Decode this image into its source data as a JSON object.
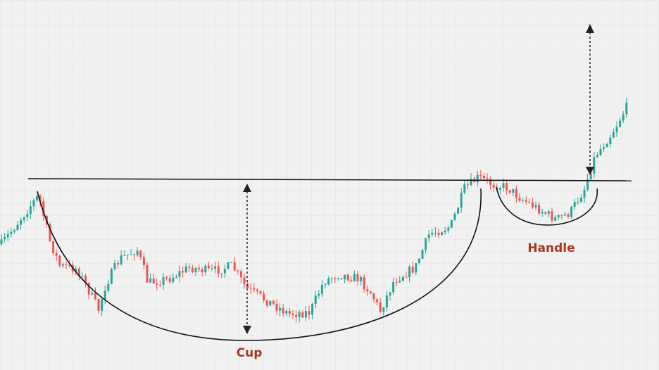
{
  "labels": {
    "cup": "Cup",
    "handle": "Handle"
  }
}
